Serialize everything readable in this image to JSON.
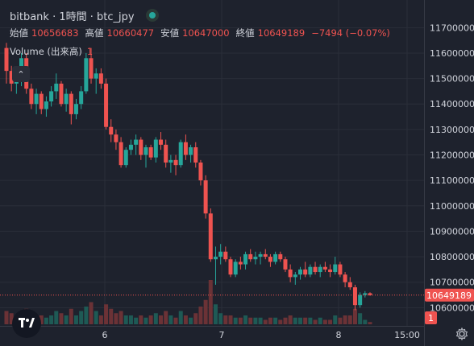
{
  "legend": {
    "symbol": "bitbank · 1時間 · btc_jpy",
    "open_label": "始値",
    "open": "10656683",
    "high_label": "高値",
    "high": "10660477",
    "low_label": "安値",
    "low": "10647000",
    "close_label": "終値",
    "close": "10649189",
    "change": "−7494 (−0.07%)",
    "volume_label": "Volume (出来高)",
    "volume_value": "1"
  },
  "collapse_icon": "chevron-up-icon",
  "logo_text": "TV",
  "price_badge": "10649189",
  "volume_badge": "1",
  "colors": {
    "up": "#26a69a",
    "down": "#ef5350",
    "background": "#1e222d",
    "grid": "#2a2e39"
  },
  "chart_data": {
    "type": "candlestick",
    "y_ticks": [
      "11700000",
      "11600000",
      "11500000",
      "11400000",
      "11300000",
      "11200000",
      "11100000",
      "11000000",
      "10900000",
      "10800000",
      "10700000",
      "10600000"
    ],
    "x_ticks": [
      "6",
      "7",
      "8",
      "15:00"
    ],
    "last_price": 10649189,
    "ylim": [
      10560000,
      11720000
    ],
    "candles": [
      [
        11620000,
        11640000,
        11480000,
        11530000
      ],
      [
        11530000,
        11550000,
        11450000,
        11480000
      ],
      [
        11480000,
        11520000,
        11440000,
        11500000
      ],
      [
        11500000,
        11600000,
        11470000,
        11580000
      ],
      [
        11580000,
        11600000,
        11440000,
        11460000
      ],
      [
        11460000,
        11480000,
        11380000,
        11400000
      ],
      [
        11400000,
        11460000,
        11360000,
        11440000
      ],
      [
        11440000,
        11450000,
        11360000,
        11380000
      ],
      [
        11380000,
        11430000,
        11350000,
        11410000
      ],
      [
        11410000,
        11470000,
        11390000,
        11450000
      ],
      [
        11450000,
        11520000,
        11420000,
        11480000
      ],
      [
        11480000,
        11490000,
        11390000,
        11400000
      ],
      [
        11400000,
        11460000,
        11370000,
        11440000
      ],
      [
        11440000,
        11450000,
        11320000,
        11360000
      ],
      [
        11360000,
        11420000,
        11340000,
        11400000
      ],
      [
        11400000,
        11470000,
        11380000,
        11450000
      ],
      [
        11450000,
        11600000,
        11440000,
        11580000
      ],
      [
        11580000,
        11620000,
        11480000,
        11500000
      ],
      [
        11500000,
        11540000,
        11440000,
        11520000
      ],
      [
        11520000,
        11540000,
        11460000,
        11480000
      ],
      [
        11480000,
        11500000,
        11300000,
        11310000
      ],
      [
        11310000,
        11340000,
        11250000,
        11280000
      ],
      [
        11280000,
        11300000,
        11220000,
        11250000
      ],
      [
        11250000,
        11270000,
        11150000,
        11160000
      ],
      [
        11160000,
        11230000,
        11150000,
        11220000
      ],
      [
        11220000,
        11260000,
        11200000,
        11240000
      ],
      [
        11240000,
        11280000,
        11200000,
        11260000
      ],
      [
        11260000,
        11270000,
        11180000,
        11200000
      ],
      [
        11200000,
        11240000,
        11150000,
        11230000
      ],
      [
        11230000,
        11240000,
        11180000,
        11190000
      ],
      [
        11190000,
        11270000,
        11170000,
        11260000
      ],
      [
        11260000,
        11290000,
        11220000,
        11240000
      ],
      [
        11240000,
        11260000,
        11150000,
        11170000
      ],
      [
        11170000,
        11200000,
        11130000,
        11180000
      ],
      [
        11180000,
        11200000,
        11120000,
        11160000
      ],
      [
        11160000,
        11260000,
        11150000,
        11250000
      ],
      [
        11250000,
        11280000,
        11180000,
        11200000
      ],
      [
        11200000,
        11240000,
        11170000,
        11230000
      ],
      [
        11230000,
        11250000,
        11150000,
        11170000
      ],
      [
        11170000,
        11180000,
        11080000,
        11100000
      ],
      [
        11100000,
        11120000,
        10950000,
        10970000
      ],
      [
        10970000,
        10990000,
        10780000,
        10790000
      ],
      [
        10790000,
        10840000,
        10690000,
        10800000
      ],
      [
        10800000,
        10850000,
        10770000,
        10820000
      ],
      [
        10820000,
        10840000,
        10780000,
        10790000
      ],
      [
        10790000,
        10800000,
        10720000,
        10730000
      ],
      [
        10730000,
        10790000,
        10720000,
        10780000
      ],
      [
        10780000,
        10800000,
        10750000,
        10770000
      ],
      [
        10770000,
        10820000,
        10750000,
        10810000
      ],
      [
        10810000,
        10830000,
        10780000,
        10790000
      ],
      [
        10790000,
        10820000,
        10770000,
        10800000
      ],
      [
        10800000,
        10820000,
        10770000,
        10810000
      ],
      [
        10810000,
        10830000,
        10790000,
        10800000
      ],
      [
        10800000,
        10810000,
        10760000,
        10780000
      ],
      [
        10780000,
        10820000,
        10770000,
        10810000
      ],
      [
        10810000,
        10820000,
        10780000,
        10790000
      ],
      [
        10790000,
        10800000,
        10740000,
        10750000
      ],
      [
        10750000,
        10770000,
        10700000,
        10720000
      ],
      [
        10720000,
        10740000,
        10690000,
        10730000
      ],
      [
        10730000,
        10760000,
        10710000,
        10750000
      ],
      [
        10750000,
        10780000,
        10720000,
        10730000
      ],
      [
        10730000,
        10770000,
        10720000,
        10760000
      ],
      [
        10760000,
        10780000,
        10730000,
        10740000
      ],
      [
        10740000,
        10770000,
        10720000,
        10760000
      ],
      [
        10760000,
        10780000,
        10740000,
        10750000
      ],
      [
        10750000,
        10770000,
        10720000,
        10740000
      ],
      [
        10740000,
        10800000,
        10730000,
        10770000
      ],
      [
        10770000,
        10780000,
        10720000,
        10730000
      ],
      [
        10730000,
        10740000,
        10680000,
        10700000
      ],
      [
        10700000,
        10720000,
        10670000,
        10680000
      ],
      [
        10680000,
        10690000,
        10590000,
        10610000
      ],
      [
        10610000,
        10660000,
        10600000,
        10650000
      ],
      [
        10650000,
        10665000,
        10640000,
        10656683
      ],
      [
        10656683,
        10660477,
        10647000,
        10649189
      ]
    ],
    "volumes": [
      0.3,
      0.25,
      0.2,
      0.3,
      0.35,
      0.2,
      0.15,
      0.2,
      0.15,
      0.2,
      0.3,
      0.25,
      0.2,
      0.35,
      0.2,
      0.3,
      0.4,
      0.5,
      0.3,
      0.2,
      0.45,
      0.35,
      0.25,
      0.3,
      0.2,
      0.2,
      0.15,
      0.2,
      0.15,
      0.2,
      0.25,
      0.2,
      0.3,
      0.2,
      0.15,
      0.3,
      0.2,
      0.15,
      0.25,
      0.4,
      0.55,
      1.0,
      0.45,
      0.25,
      0.2,
      0.2,
      0.15,
      0.15,
      0.2,
      0.15,
      0.15,
      0.15,
      0.1,
      0.15,
      0.15,
      0.1,
      0.15,
      0.2,
      0.15,
      0.15,
      0.15,
      0.15,
      0.1,
      0.15,
      0.1,
      0.1,
      0.2,
      0.15,
      0.2,
      0.2,
      0.35,
      0.25,
      0.1,
      0.05
    ]
  }
}
